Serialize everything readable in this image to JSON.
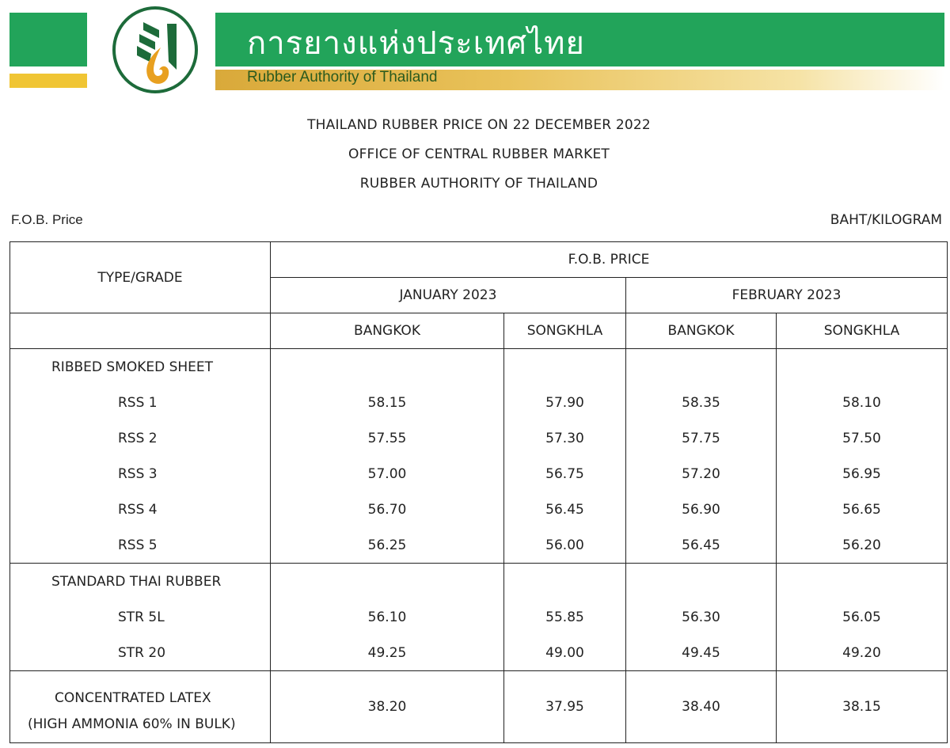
{
  "banner": {
    "thai_name": "การยางแห่งประเทศไทย",
    "english_name": "Rubber Authority of Thailand",
    "colors": {
      "green": "#22a45a",
      "gold": "#e0b040",
      "orange": "#e8a020"
    }
  },
  "titles": [
    "THAILAND RUBBER PRICE ON 22 DECEMBER 2022",
    "OFFICE OF CENTRAL RUBBER MARKET",
    "RUBBER AUTHORITY OF THAILAND"
  ],
  "price_label": "F.O.B. Price",
  "unit": "BAHT/KILOGRAM",
  "table": {
    "type_header": "TYPE/GRADE",
    "fob_header": "F.O.B. PRICE",
    "months": [
      "JANUARY 2023",
      "FEBRUARY 2023"
    ],
    "ports": [
      "BANGKOK",
      "SONGKHLA",
      "BANGKOK",
      "SONGKHLA"
    ],
    "groups": [
      {
        "name": "RIBBED  SMOKED SHEET",
        "rows": [
          {
            "grade": "RSS 1",
            "values": [
              "58.15",
              "57.90",
              "58.35",
              "58.10"
            ]
          },
          {
            "grade": "RSS 2",
            "values": [
              "57.55",
              "57.30",
              "57.75",
              "57.50"
            ]
          },
          {
            "grade": "RSS 3",
            "values": [
              "57.00",
              "56.75",
              "57.20",
              "56.95"
            ]
          },
          {
            "grade": "RSS 4",
            "values": [
              "56.70",
              "56.45",
              "56.90",
              "56.65"
            ]
          },
          {
            "grade": "RSS 5",
            "values": [
              "56.25",
              "56.00",
              "56.45",
              "56.20"
            ]
          }
        ]
      },
      {
        "name": "STANDARD THAI RUBBER",
        "rows": [
          {
            "grade": "STR  5L",
            "values": [
              "56.10",
              "55.85",
              "56.30",
              "56.05"
            ]
          },
          {
            "grade": "STR  20",
            "values": [
              "49.25",
              "49.00",
              "49.45",
              "49.20"
            ]
          }
        ]
      },
      {
        "name": "CONCENTRATED LATEX",
        "detail": "(HIGH AMMONIA 60% IN BULK)",
        "values": [
          "38.20",
          "37.95",
          "38.40",
          "38.15"
        ]
      }
    ]
  }
}
